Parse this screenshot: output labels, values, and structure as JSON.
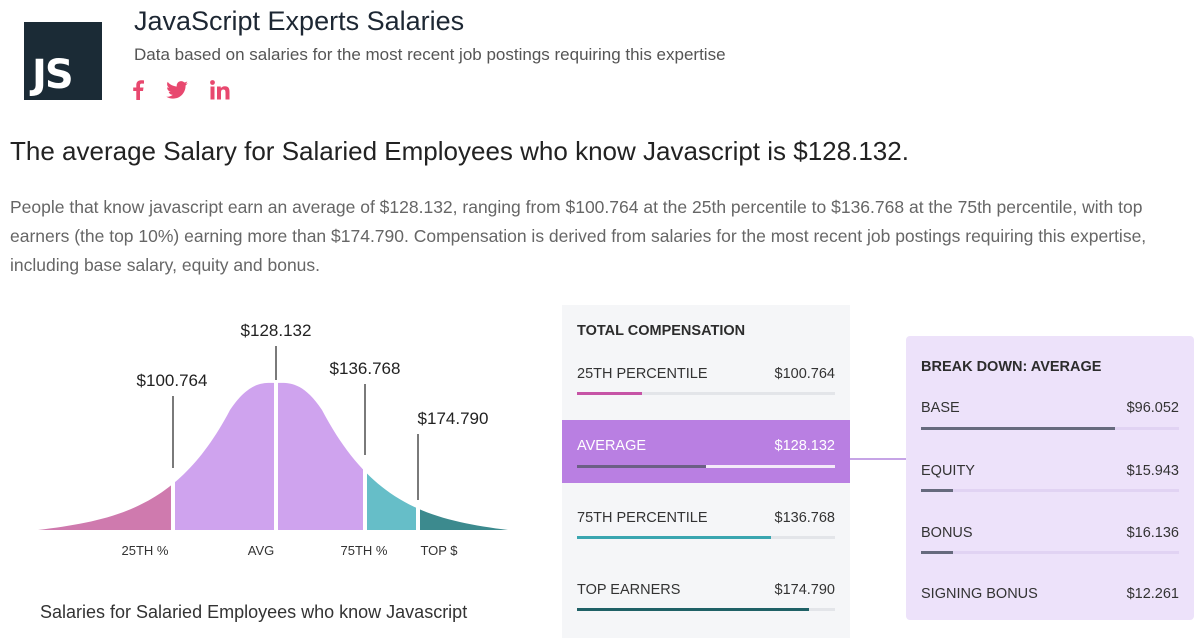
{
  "header": {
    "logo_text": "JS",
    "title": "JavaScript Experts Salaries",
    "subtitle": "Data based on salaries for the most recent job postings requiring this expertise",
    "social": [
      "facebook-icon",
      "twitter-icon",
      "linkedin-icon"
    ],
    "social_color": "#e8486f"
  },
  "headline": "The average Salary for Salaried Employees who know Javascript is $128.132.",
  "description": "People that know javascript earn an average of $128.132, ranging from $100.764 at the 25th percentile to $136.768 at the 75th percentile, with top earners (the top 10%) earning more than $174.790. Compensation is derived from salaries for the most recent job postings requiring this expertise, including base salary, equity and bonus.",
  "chart": {
    "caption": "Salaries for Salaried Employees who know Javascript",
    "markers": [
      {
        "value_label": "$100.764",
        "axis_label": "25TH %"
      },
      {
        "value_label": "$128.132",
        "axis_label": "AVG"
      },
      {
        "value_label": "$136.768",
        "axis_label": "75TH %"
      },
      {
        "value_label": "$174.790",
        "axis_label": "TOP $"
      }
    ],
    "colors": {
      "p25": "#cf7aae",
      "avg": "#cfa3ee",
      "p75": "#66bec8",
      "top": "#3c8a8e"
    }
  },
  "total_compensation": {
    "heading": "TOTAL COMPENSATION",
    "rows": [
      {
        "label": "25TH PERCENTILE",
        "value": "$100.764",
        "fill_fraction": 0.25,
        "bar_color": "#c654a6"
      },
      {
        "label": "AVERAGE",
        "value": "$128.132",
        "fill_fraction": 0.5,
        "bar_color": "#6b5f85",
        "active": true
      },
      {
        "label": "75TH PERCENTILE",
        "value": "$136.768",
        "fill_fraction": 0.75,
        "bar_color": "#3aa6b0"
      },
      {
        "label": "TOP EARNERS",
        "value": "$174.790",
        "fill_fraction": 0.9,
        "bar_color": "#1f6166"
      }
    ]
  },
  "breakdown": {
    "heading": "BREAK DOWN: AVERAGE",
    "rows": [
      {
        "label": "BASE",
        "value": "$96.052",
        "fill_fraction": 0.75
      },
      {
        "label": "EQUITY",
        "value": "$15.943",
        "fill_fraction": 0.125
      },
      {
        "label": "BONUS",
        "value": "$16.136",
        "fill_fraction": 0.125
      },
      {
        "label": "SIGNING BONUS",
        "value": "$12.261",
        "fill_fraction": 0
      }
    ]
  }
}
